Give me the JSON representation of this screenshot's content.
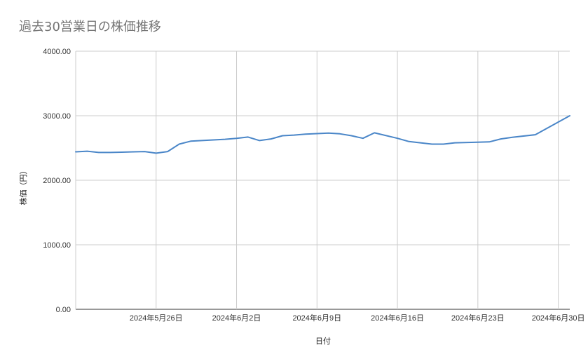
{
  "chart_data": {
    "type": "line",
    "title": "過去30営業日の株価推移",
    "xlabel": "日付",
    "ylabel": "株価（円）",
    "ylim": [
      0,
      4000
    ],
    "yticks": [
      "0.00",
      "1000.00",
      "2000.00",
      "3000.00",
      "4000.00"
    ],
    "ytick_values": [
      0,
      1000,
      2000,
      3000,
      4000
    ],
    "xlim": [
      "2024-05-19",
      "2024-07-01"
    ],
    "xticks": [
      "2024年5月26日",
      "2024年6月2日",
      "2024年6月9日",
      "2024年6月16日",
      "2024年6月23日",
      "2024年6月30日"
    ],
    "xtick_dates": [
      "2024-05-26",
      "2024-06-02",
      "2024-06-09",
      "2024-06-16",
      "2024-06-23",
      "2024-06-30"
    ],
    "grid": true,
    "line_color": "#4a86c8",
    "series": [
      {
        "x": [
          "2024-05-19",
          "2024-05-20",
          "2024-05-21",
          "2024-05-22",
          "2024-05-23",
          "2024-05-24",
          "2024-05-25",
          "2024-05-26",
          "2024-05-27",
          "2024-05-28",
          "2024-05-29",
          "2024-05-30",
          "2024-05-31",
          "2024-06-01",
          "2024-06-02",
          "2024-06-03",
          "2024-06-04",
          "2024-06-05",
          "2024-06-06",
          "2024-06-07",
          "2024-06-08",
          "2024-06-10",
          "2024-06-11",
          "2024-06-12",
          "2024-06-13",
          "2024-06-14",
          "2024-06-16",
          "2024-06-17",
          "2024-06-19",
          "2024-06-20",
          "2024-06-21",
          "2024-06-23",
          "2024-06-24",
          "2024-06-25",
          "2024-06-26",
          "2024-06-28",
          "2024-07-01"
        ],
        "values": [
          2440,
          2450,
          2430,
          2430,
          2435,
          2440,
          2445,
          2420,
          2445,
          2560,
          2605,
          2615,
          2625,
          2635,
          2650,
          2670,
          2615,
          2640,
          2690,
          2700,
          2715,
          2730,
          2720,
          2690,
          2650,
          2735,
          2650,
          2600,
          2560,
          2560,
          2580,
          2590,
          2595,
          2640,
          2665,
          2705,
          3000
        ]
      }
    ]
  }
}
